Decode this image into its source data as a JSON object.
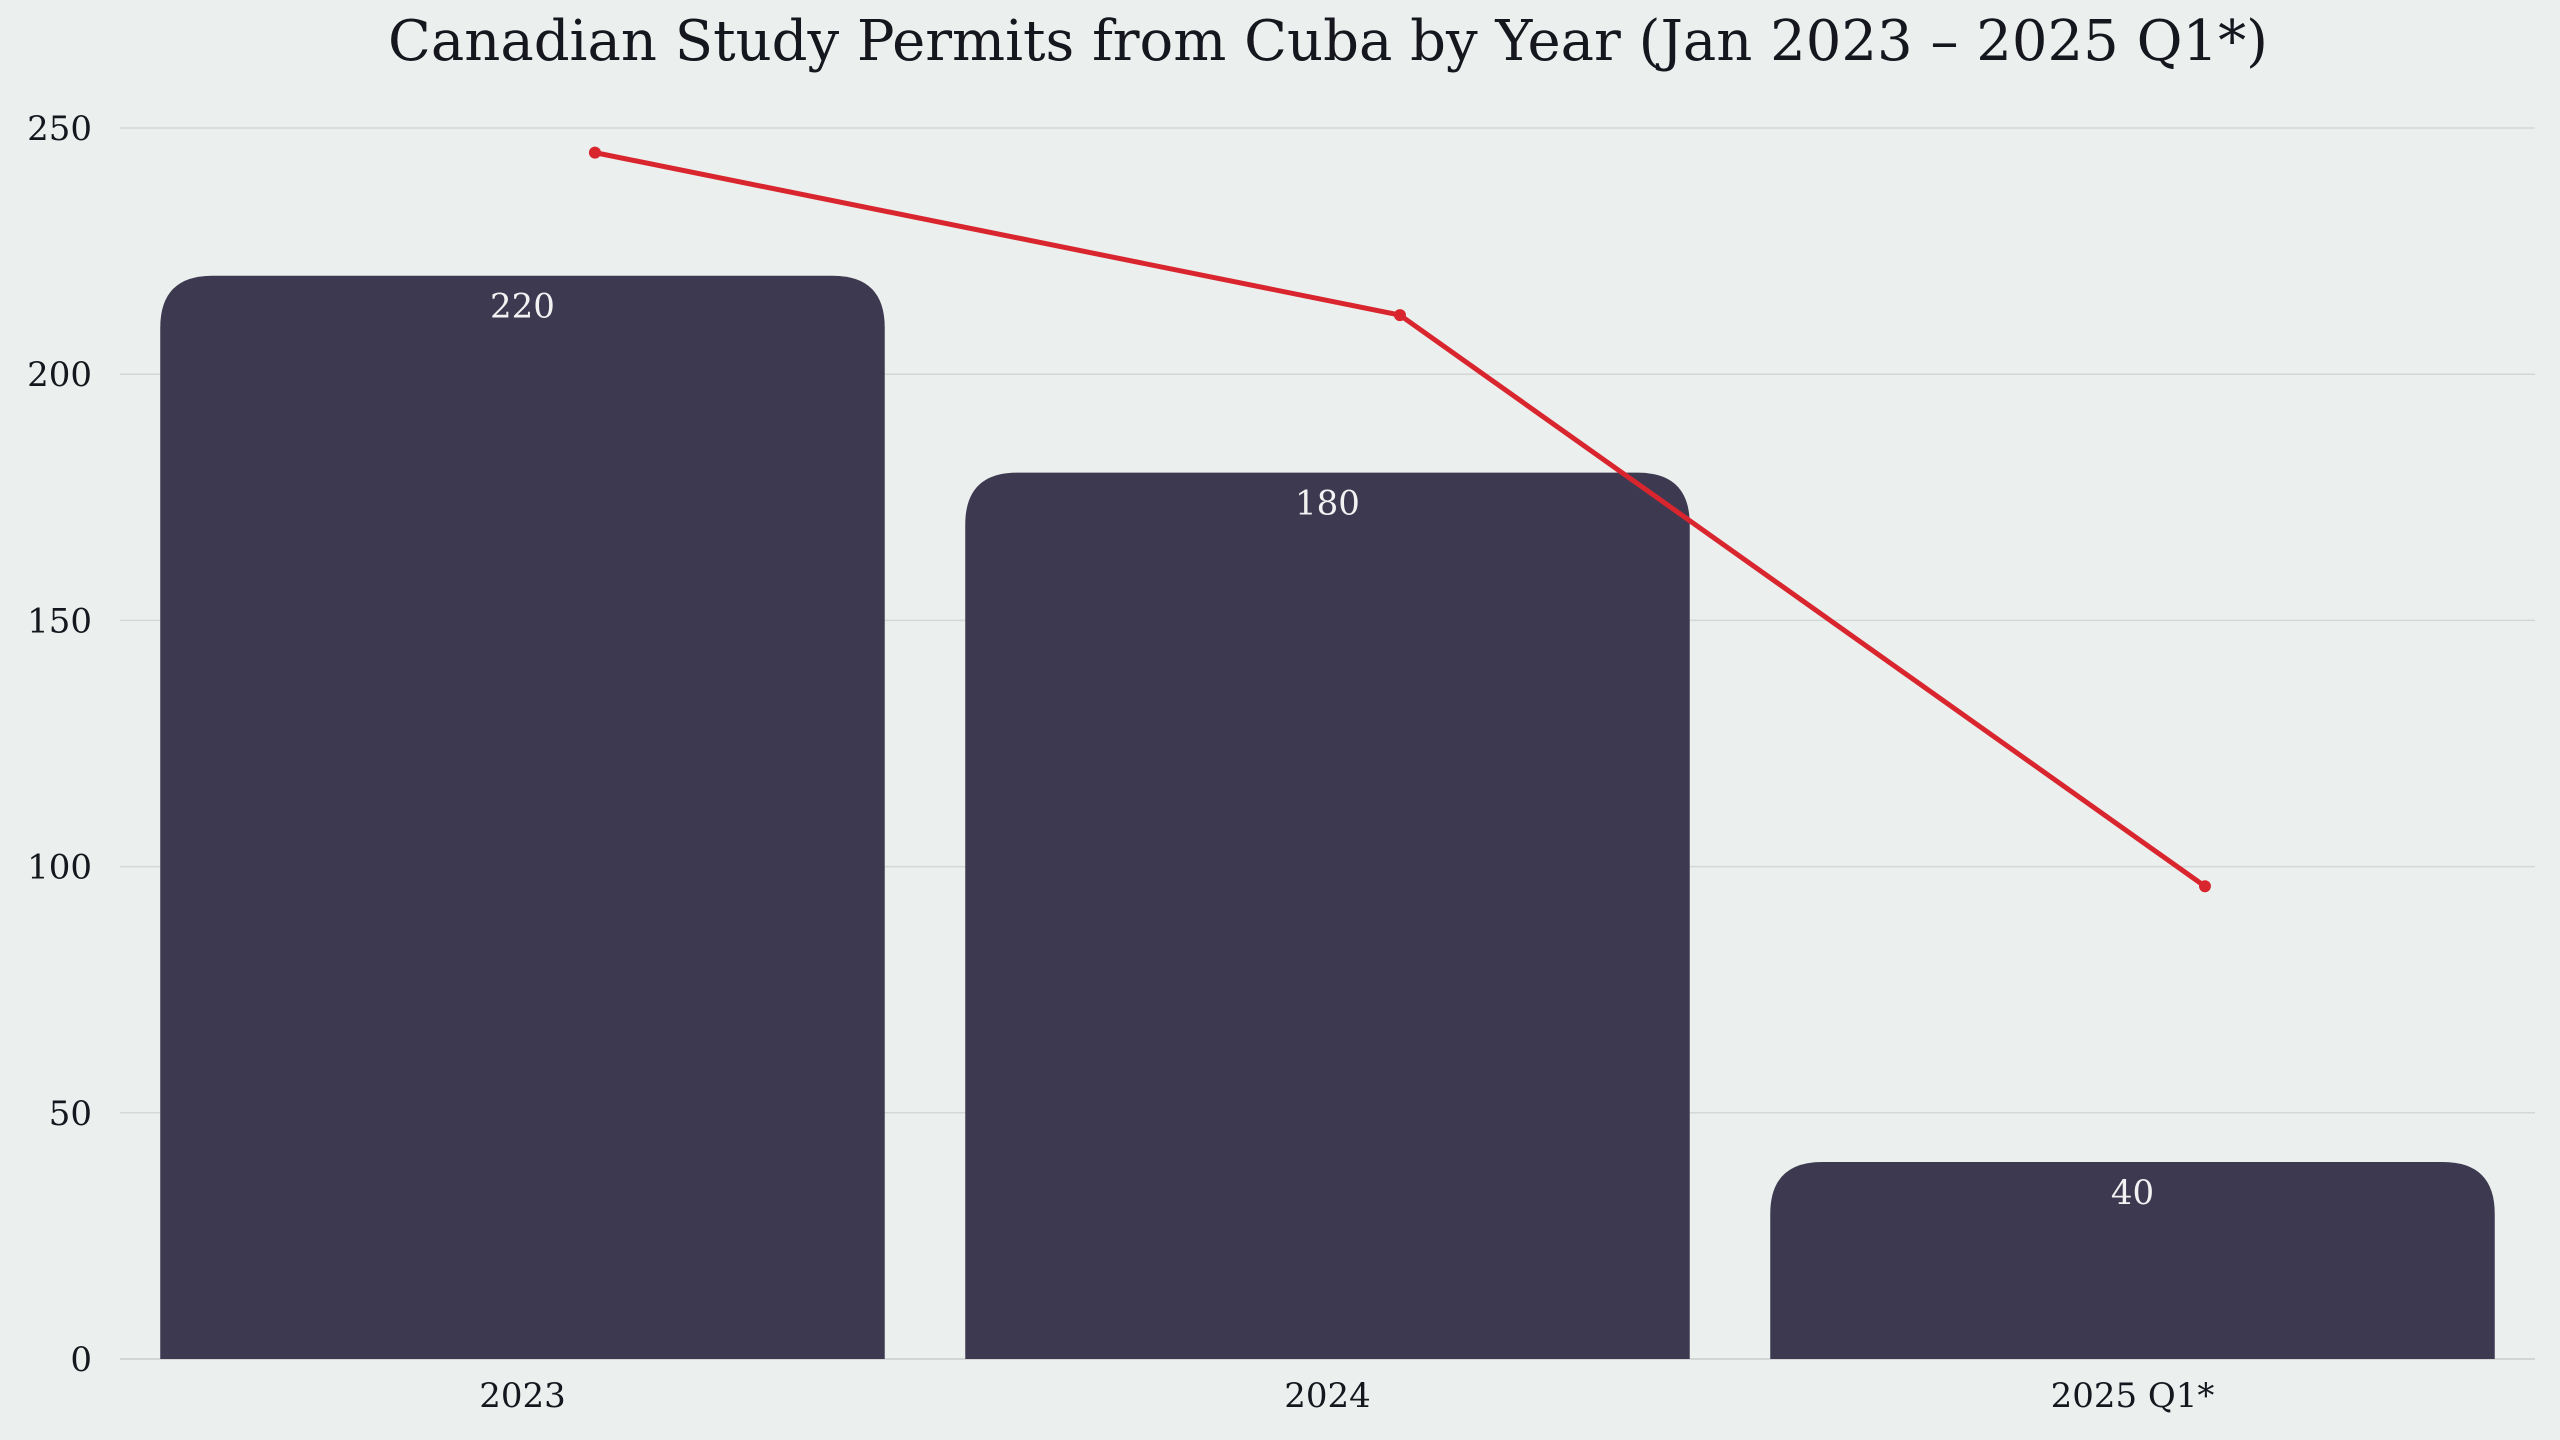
{
  "chart_data": {
    "type": "bar",
    "title": "Canadian Study Permits from Cuba by Year (Jan 2023 – 2025 Q1*)",
    "xlabel": "",
    "ylabel": "",
    "categories": [
      "2023",
      "2024",
      "2025 Q1*"
    ],
    "series": [
      {
        "type": "bar",
        "values": [
          220,
          180,
          40
        ],
        "data_labels": [
          "220",
          "180",
          "40"
        ],
        "color": "#3d3950"
      },
      {
        "type": "line",
        "values": [
          245,
          212,
          96
        ],
        "color": "#d9262e"
      }
    ],
    "ylim": [
      0,
      250
    ],
    "yticks": [
      0,
      50,
      100,
      150,
      200,
      250
    ],
    "ytick_labels": [
      "0",
      "50",
      "100",
      "150",
      "200",
      "250"
    ],
    "grid": true,
    "legend": "none",
    "background": "#ebefed"
  }
}
